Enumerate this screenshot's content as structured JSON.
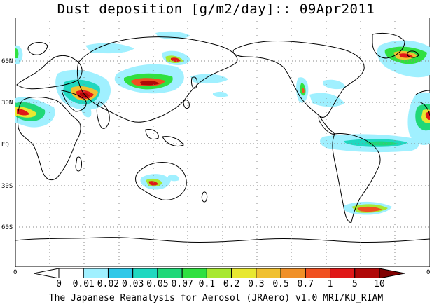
{
  "title": "Dust deposition [g/m2/day]:: 09Apr2011",
  "latitude_labels": [
    "60N",
    "30N",
    "EQ",
    "30S",
    "60S"
  ],
  "edge_labels": {
    "left": "0",
    "right": "0"
  },
  "colorbar": {
    "labels": [
      "0",
      "0.01",
      "0.02",
      "0.03",
      "0.05",
      "0.07",
      "0.1",
      "0.2",
      "0.3",
      "0.5",
      "0.7",
      "1",
      "5",
      "10"
    ],
    "colors": [
      "#ffffff",
      "#a0f0ff",
      "#30c8e8",
      "#20d8c0",
      "#20d878",
      "#30e040",
      "#a8e830",
      "#e8e830",
      "#f0c030",
      "#f09028",
      "#f05020",
      "#e01818",
      "#b00808",
      "#800000"
    ]
  },
  "footer": "The Japanese Reanalysis for Aerosol (JRAero) v1.0 MRI/KU_RIAM"
}
